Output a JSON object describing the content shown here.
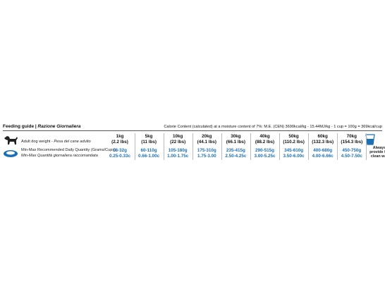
{
  "header": {
    "title": "Feeding guide",
    "subtitle": "Razione Giornaliera",
    "calorie_note": "Calorie Content (calculated) at a moisture content of 7%: M.E. (CEN) 3690kcal/kg - 15.44MJ/kg - 1 cup = 100g = 369kcal/cup"
  },
  "table": {
    "weight_label": "Adult dog weight",
    "weight_label_it": "Pesa del cane adulto",
    "quantity_label": "Min-Max Recommended Daily Quantity (Grams/Cups)",
    "quantity_label_it": "Min-Max Quantità giornaliera raccomandata",
    "columns": [
      {
        "weight": "1kg",
        "lbs": "(2.2 lbs)",
        "grams": "18-32g",
        "cups": "0.25-0.33c"
      },
      {
        "weight": "5kg",
        "lbs": "(11 lbs)",
        "grams": "60-110g",
        "cups": "0.66-1.00c"
      },
      {
        "weight": "10kg",
        "lbs": "(22 lbs)",
        "grams": "105-180g",
        "cups": "1.00-1.75c"
      },
      {
        "weight": "20kg",
        "lbs": "(44.1 lbs)",
        "grams": "175-310g",
        "cups": "1.75-3.00"
      },
      {
        "weight": "30kg",
        "lbs": "(66.1 lbs)",
        "grams": "235-415g",
        "cups": "2.50-4.25c"
      },
      {
        "weight": "40kg",
        "lbs": "(88.2 lbs)",
        "grams": "290-515g",
        "cups": "3.00-5.25c"
      },
      {
        "weight": "50kg",
        "lbs": "(110.2 lbs)",
        "grams": "345-610g",
        "cups": "3.50-6.00c"
      },
      {
        "weight": "60kg",
        "lbs": "(132.3 lbs)",
        "grams": "400-680g",
        "cups": "4.00-6.66c"
      },
      {
        "weight": "70kg",
        "lbs": "(154.3 lbs)",
        "grams": "450-750g",
        "cups": "4.50-7.50c"
      }
    ]
  },
  "water_note": [
    "Always",
    "provide fre",
    "clean wat"
  ]
}
